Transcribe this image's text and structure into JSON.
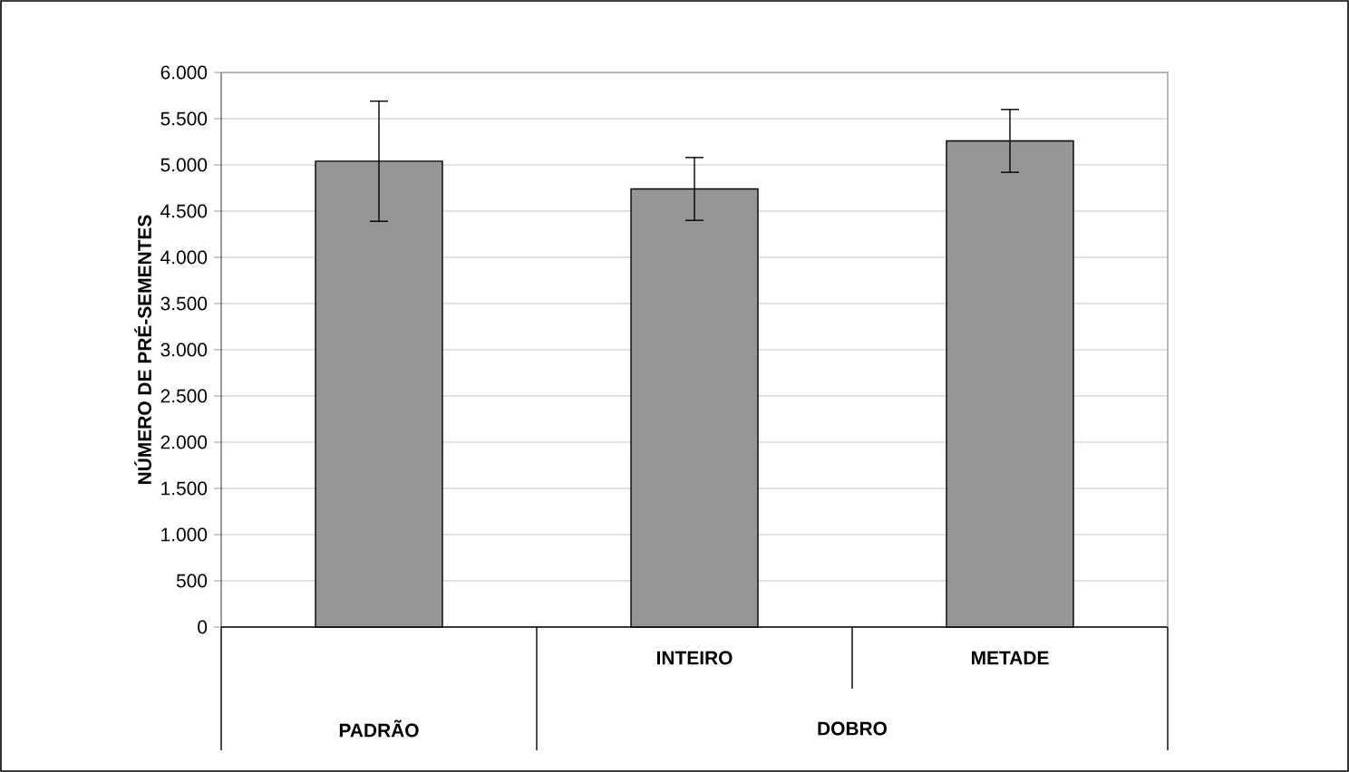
{
  "chart_data": {
    "type": "bar",
    "ylabel": "NÚMERO DE PRÉ-SEMENTES",
    "categories": [
      null,
      "INTEIRO",
      "METADE"
    ],
    "values": [
      5040,
      4740,
      5260
    ],
    "errors": [
      650,
      340,
      340
    ],
    "color": "#969696",
    "ylim": [
      0,
      6000
    ],
    "yticks": [
      {
        "value": 0,
        "label": "0"
      },
      {
        "value": 500,
        "label": "500"
      },
      {
        "value": 1000,
        "label": "1.000"
      },
      {
        "value": 1500,
        "label": "1.500"
      },
      {
        "value": 2000,
        "label": "2.000"
      },
      {
        "value": 2500,
        "label": "2.500"
      },
      {
        "value": 3000,
        "label": "3.000"
      },
      {
        "value": 3500,
        "label": "3.500"
      },
      {
        "value": 4000,
        "label": "4.000"
      },
      {
        "value": 4500,
        "label": "4.500"
      },
      {
        "value": 5000,
        "label": "5.000"
      },
      {
        "value": 5500,
        "label": "5.500"
      },
      {
        "value": 6000,
        "label": "6.000"
      }
    ],
    "grid": "y",
    "annotations": [
      "PADRÃO",
      "DOBRO"
    ]
  }
}
